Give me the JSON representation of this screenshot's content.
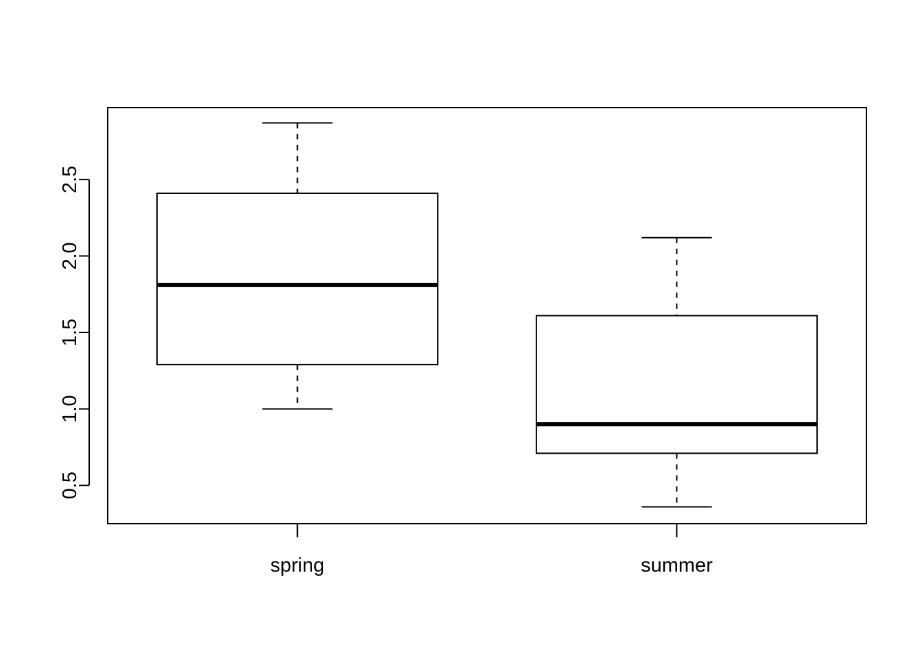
{
  "chart_data": {
    "type": "boxplot",
    "title": "",
    "xlabel": "",
    "ylabel": "",
    "categories": [
      "spring",
      "summer"
    ],
    "boxes": [
      {
        "category": "spring",
        "whisker_low": 1.0,
        "q1": 1.29,
        "median": 1.81,
        "q3": 2.41,
        "whisker_high": 2.87
      },
      {
        "category": "summer",
        "whisker_low": 0.36,
        "q1": 0.71,
        "median": 0.9,
        "q3": 1.61,
        "whisker_high": 2.12
      }
    ],
    "yticks": [
      "0.5",
      "1.0",
      "1.5",
      "2.0",
      "2.5"
    ],
    "ylim": [
      0.25,
      2.97
    ],
    "grid": false,
    "legend": "none"
  }
}
